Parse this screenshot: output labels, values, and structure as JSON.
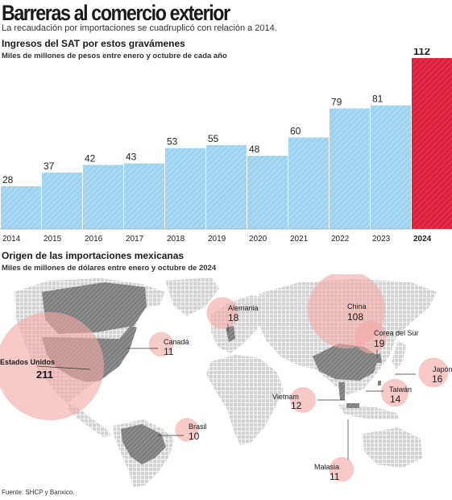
{
  "header": {
    "title": "Barreras al comercio exterior",
    "subtitle": "La recaudación por importaciones se cuadruplicó con relación a 2014."
  },
  "revenue_section": {
    "title": "Ingresos del SAT por estos gravámenes",
    "subtitle": "Miles de millones de pesos entre enero y octubre de cada año"
  },
  "imports_section": {
    "title": "Origen de las importaciones mexicanas",
    "subtitle": "Miles de millones de dólares entre enero y octubre de 2024"
  },
  "source": "Fuente: SHCP y Banxico.",
  "colors": {
    "bar": "#a9d8f3",
    "bar_hatch": "#7fc2ea",
    "highlight": "#db1f3f",
    "highlight_hatch": "#f04862",
    "bubble": "#f2a9a7",
    "land": "#d2d2d2"
  },
  "chart_data": [
    {
      "type": "bar",
      "categories": [
        "2014",
        "2015",
        "2016",
        "2017",
        "2018",
        "2019",
        "2020",
        "2021",
        "2022",
        "2023",
        "2024"
      ],
      "values": [
        28,
        37,
        42,
        43,
        53,
        55,
        48,
        60,
        79,
        81,
        112
      ],
      "highlight": "2024",
      "ylim": [
        0,
        112
      ]
    },
    {
      "type": "bubble-map",
      "points": [
        {
          "name": "Estados Unidos",
          "value": 211
        },
        {
          "name": "China",
          "value": 108
        },
        {
          "name": "Corea del Sur",
          "value": 19
        },
        {
          "name": "Alemania",
          "value": 18
        },
        {
          "name": "Japón",
          "value": 16
        },
        {
          "name": "Taiwán",
          "value": 14
        },
        {
          "name": "Vietnam",
          "value": 12
        },
        {
          "name": "Canadá",
          "value": 11
        },
        {
          "name": "Malasia",
          "value": 11
        },
        {
          "name": "Brasil",
          "value": 10
        }
      ]
    }
  ]
}
